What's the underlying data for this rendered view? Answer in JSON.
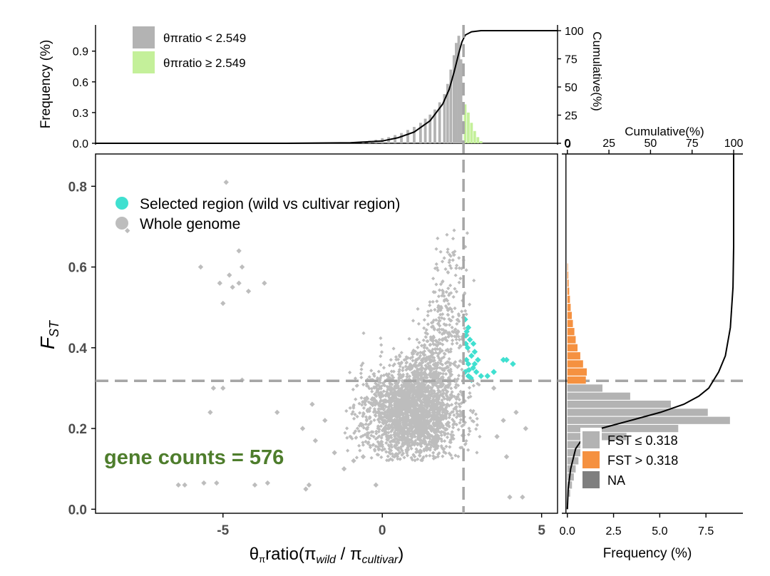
{
  "colors": {
    "whole_genome": "#bdbdbd",
    "selected": "#40e0d0",
    "hist_low": "#b3b3b3",
    "hist_high_green": "#c4f09a",
    "hist_high_orange": "#f59140",
    "hist_na": "#7f7f7f",
    "threshold_line": "#a6a6a6",
    "gene_count": "#4e7d2c",
    "cumulative_line": "#000000"
  },
  "annotation": {
    "gene_count": "gene counts = 576"
  },
  "chart_data": [
    {
      "id": "scatter",
      "type": "scatter",
      "xlabel": "θπratio(πwild / πcultivar)",
      "ylabel": "FST",
      "xlim": [
        -9.0,
        5.5
      ],
      "ylim": [
        -0.01,
        0.88
      ],
      "x_ticks": [
        -5,
        0,
        5
      ],
      "x_tick_labels": [
        "-5",
        "0",
        "5"
      ],
      "y_ticks": [
        0.0,
        0.2,
        0.4,
        0.6,
        0.8
      ],
      "y_tick_labels": [
        "0.0",
        "0.2",
        "0.4",
        "0.6",
        "0.8"
      ],
      "thresholds": {
        "x": 2.549,
        "y": 0.318
      },
      "legend": {
        "placement": "top-left",
        "entries": [
          "Selected region (wild vs cultivar region)",
          "Whole genome"
        ]
      },
      "series": [
        {
          "name": "Whole genome",
          "core": {
            "x_center": 0.9,
            "x_spread": 0.75,
            "y_center": 0.24,
            "y_spread": 0.055
          },
          "outliers": [
            [
              -8.0,
              0.69
            ],
            [
              -4.9,
              0.81
            ],
            [
              -5.7,
              0.6
            ],
            [
              -5.1,
              0.56
            ],
            [
              -4.8,
              0.58
            ],
            [
              -4.5,
              0.56
            ],
            [
              -5.0,
              0.51
            ],
            [
              -4.5,
              0.64
            ],
            [
              -4.4,
              0.6
            ],
            [
              -3.7,
              0.56
            ],
            [
              -4.7,
              0.55
            ],
            [
              -4.2,
              0.54
            ],
            [
              -5.3,
              0.3
            ],
            [
              -5.0,
              0.3
            ],
            [
              -4.4,
              0.32
            ],
            [
              -5.4,
              0.24
            ],
            [
              -3.3,
              0.24
            ],
            [
              -2.5,
              0.2
            ],
            [
              -2.2,
              0.26
            ],
            [
              -6.4,
              0.06
            ],
            [
              -6.2,
              0.06
            ],
            [
              -5.6,
              0.065
            ],
            [
              -5.2,
              0.065
            ],
            [
              -4.0,
              0.06
            ],
            [
              -3.6,
              0.065
            ],
            [
              -2.4,
              0.05
            ],
            [
              -2.3,
              0.06
            ],
            [
              -1.2,
              0.1
            ],
            [
              -0.6,
              0.13
            ],
            [
              -0.9,
              0.12
            ],
            [
              -1.5,
              0.14
            ],
            [
              -0.2,
              0.06
            ],
            [
              4.0,
              0.03
            ],
            [
              4.4,
              0.03
            ],
            [
              4.5,
              0.2
            ],
            [
              3.8,
              0.22
            ],
            [
              4.2,
              0.24
            ],
            [
              3.5,
              0.3
            ],
            [
              3.6,
              0.18
            ],
            [
              3.9,
              0.13
            ],
            [
              -2.1,
              0.17
            ],
            [
              -1.8,
              0.22
            ]
          ]
        },
        {
          "name": "Selected region (wild vs cultivar region)",
          "points": [
            [
              2.6,
              0.47
            ],
            [
              2.65,
              0.44
            ],
            [
              2.7,
              0.45
            ],
            [
              2.62,
              0.41
            ],
            [
              2.75,
              0.42
            ],
            [
              2.8,
              0.38
            ],
            [
              2.9,
              0.39
            ],
            [
              2.7,
              0.36
            ],
            [
              2.85,
              0.35
            ],
            [
              2.6,
              0.34
            ],
            [
              2.95,
              0.34
            ],
            [
              3.1,
              0.33
            ],
            [
              2.7,
              0.33
            ],
            [
              3.3,
              0.33
            ],
            [
              2.8,
              0.32
            ],
            [
              2.64,
              0.37
            ],
            [
              2.9,
              0.36
            ],
            [
              2.68,
              0.4
            ],
            [
              3.0,
              0.37
            ],
            [
              3.9,
              0.37
            ],
            [
              3.8,
              0.37
            ],
            [
              4.1,
              0.36
            ],
            [
              2.72,
              0.345
            ],
            [
              2.78,
              0.325
            ],
            [
              3.5,
              0.34
            ],
            [
              2.62,
              0.43
            ],
            [
              2.86,
              0.41
            ]
          ]
        }
      ]
    },
    {
      "id": "top_histogram",
      "type": "bar",
      "ylabel": "Frequency (%)",
      "y2label": "Cumulative(%)",
      "ylim": [
        0,
        1.1
      ],
      "y_ticks": [
        0.0,
        0.3,
        0.6,
        0.9
      ],
      "y_tick_labels": [
        "0.0",
        "0.3",
        "0.6",
        "0.9"
      ],
      "y2_ticks": [
        0,
        25,
        50,
        75,
        100
      ],
      "y2_tick_labels": [
        "0",
        "25",
        "50",
        "75",
        "100"
      ],
      "legend": {
        "placement": "top-left",
        "entries": [
          "θπratio < 2.549",
          "θπratio ≥ 2.549"
        ]
      },
      "threshold": 2.549,
      "bars": [
        [
          -1.2,
          0.005
        ],
        [
          -0.9,
          0.01
        ],
        [
          -0.6,
          0.015
        ],
        [
          -0.4,
          0.025
        ],
        [
          -0.2,
          0.035
        ],
        [
          0.0,
          0.05
        ],
        [
          0.2,
          0.06
        ],
        [
          0.4,
          0.08
        ],
        [
          0.6,
          0.1
        ],
        [
          0.8,
          0.13
        ],
        [
          1.0,
          0.16
        ],
        [
          1.2,
          0.2
        ],
        [
          1.35,
          0.24
        ],
        [
          1.5,
          0.28
        ],
        [
          1.65,
          0.33
        ],
        [
          1.8,
          0.4
        ],
        [
          1.95,
          0.48
        ],
        [
          2.05,
          0.58
        ],
        [
          2.15,
          0.72
        ],
        [
          2.25,
          0.86
        ],
        [
          2.32,
          0.98
        ],
        [
          2.4,
          1.05
        ],
        [
          2.47,
          0.82
        ],
        [
          2.6,
          0.38
        ],
        [
          2.7,
          0.3
        ],
        [
          2.8,
          0.2
        ],
        [
          2.9,
          0.12
        ],
        [
          3.0,
          0.06
        ],
        [
          3.1,
          0.02
        ]
      ],
      "cumulative": [
        [
          -9.0,
          0
        ],
        [
          -3.0,
          0
        ],
        [
          -1.0,
          0.5
        ],
        [
          0.0,
          2
        ],
        [
          0.5,
          5
        ],
        [
          1.0,
          10
        ],
        [
          1.5,
          20
        ],
        [
          1.9,
          35
        ],
        [
          2.1,
          48
        ],
        [
          2.25,
          63
        ],
        [
          2.4,
          80
        ],
        [
          2.5,
          90
        ],
        [
          2.6,
          96
        ],
        [
          2.8,
          99
        ],
        [
          3.1,
          100
        ],
        [
          5.5,
          100
        ]
      ]
    },
    {
      "id": "right_histogram",
      "type": "bar",
      "xlabel": "Frequency (%)",
      "x2label": "Cumulative(%)",
      "xlim": [
        -0.3,
        9.5
      ],
      "x_ticks": [
        0,
        2.5,
        5,
        7.5
      ],
      "x_tick_labels": [
        "0.0",
        "2.5",
        "5.0",
        "7.5"
      ],
      "x2_ticks": [
        0,
        25,
        50,
        75,
        100
      ],
      "x2_tick_labels": [
        "0",
        "25",
        "50",
        "75",
        "100"
      ],
      "legend": {
        "placement": "bottom-right",
        "entries": [
          "FST ≤ 0.318",
          "FST > 0.318",
          "NA"
        ]
      },
      "threshold": 0.318,
      "bars": [
        [
          0.02,
          0.05
        ],
        [
          0.04,
          0.15
        ],
        [
          0.06,
          0.25
        ],
        [
          0.08,
          0.35
        ],
        [
          0.1,
          0.45
        ],
        [
          0.12,
          0.6
        ],
        [
          0.14,
          0.8
        ],
        [
          0.16,
          1.1
        ],
        [
          0.18,
          3.2
        ],
        [
          0.2,
          6.0
        ],
        [
          0.22,
          8.8
        ],
        [
          0.24,
          7.6
        ],
        [
          0.26,
          5.6
        ],
        [
          0.28,
          3.4
        ],
        [
          0.3,
          1.9
        ],
        [
          0.32,
          1.0
        ],
        [
          0.34,
          1.05
        ],
        [
          0.36,
          0.85
        ],
        [
          0.38,
          0.7
        ],
        [
          0.4,
          0.55
        ],
        [
          0.42,
          0.45
        ],
        [
          0.44,
          0.38
        ],
        [
          0.46,
          0.3
        ],
        [
          0.48,
          0.24
        ],
        [
          0.5,
          0.18
        ],
        [
          0.52,
          0.14
        ],
        [
          0.54,
          0.1
        ],
        [
          0.56,
          0.07
        ],
        [
          0.58,
          0.05
        ],
        [
          0.6,
          0.03
        ]
      ],
      "cumulative": [
        [
          0.0,
          0
        ],
        [
          0.05,
          0.5
        ],
        [
          0.1,
          2
        ],
        [
          0.15,
          5
        ],
        [
          0.18,
          10
        ],
        [
          0.2,
          20
        ],
        [
          0.22,
          38
        ],
        [
          0.24,
          56
        ],
        [
          0.26,
          70
        ],
        [
          0.28,
          79
        ],
        [
          0.3,
          85
        ],
        [
          0.32,
          88
        ],
        [
          0.34,
          91
        ],
        [
          0.38,
          95
        ],
        [
          0.45,
          98
        ],
        [
          0.55,
          99.6
        ],
        [
          0.65,
          100
        ],
        [
          0.88,
          100
        ]
      ]
    }
  ]
}
